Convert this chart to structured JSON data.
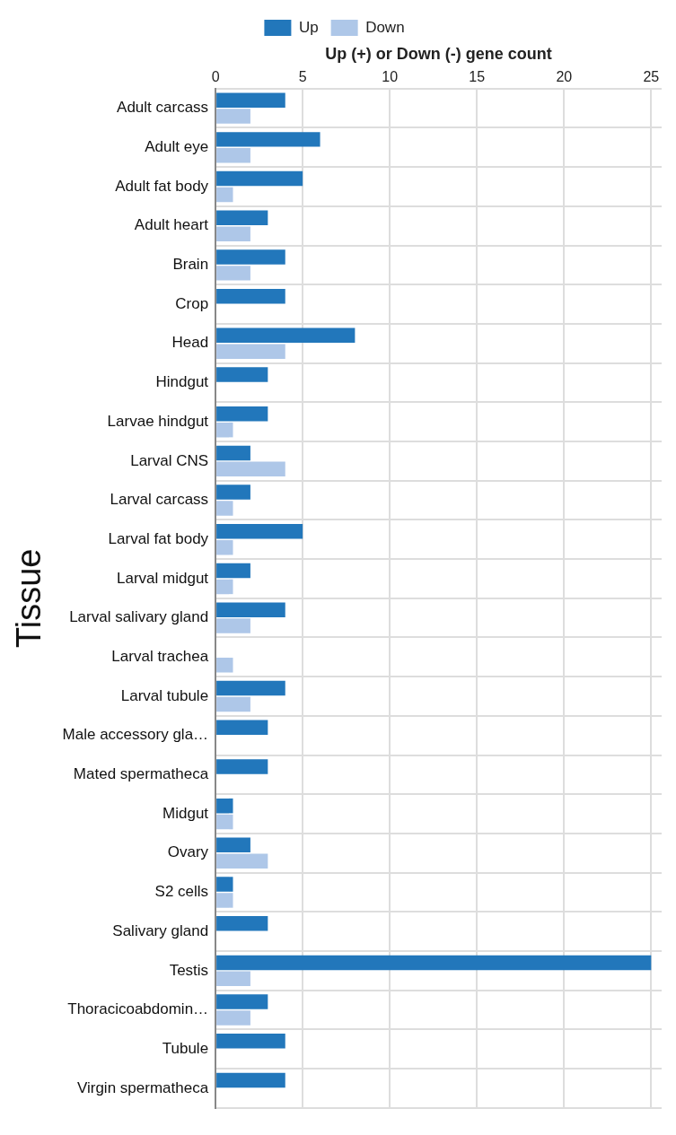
{
  "chart_data": {
    "type": "bar",
    "orientation": "horizontal",
    "xlabel": "Up (+) or Down (-) gene count",
    "ylabel": "Tissue",
    "categories": [
      "Adult carcass",
      "Adult eye",
      "Adult fat body",
      "Adult heart",
      "Brain",
      "Crop",
      "Head",
      "Hindgut",
      "Larvae hindgut",
      "Larval CNS",
      "Larval carcass",
      "Larval fat body",
      "Larval midgut",
      "Larval salivary gland",
      "Larval trachea",
      "Larval tubule",
      "Male accessory gla…",
      "Mated spermatheca",
      "Midgut",
      "Ovary",
      "S2 cells",
      "Salivary gland",
      "Testis",
      "Thoracicoabdomin…",
      "Tubule",
      "Virgin spermatheca"
    ],
    "series": [
      {
        "name": "Up",
        "color": "#2277bb",
        "values": [
          4,
          6,
          5,
          3,
          4,
          4,
          8,
          3,
          3,
          2,
          2,
          5,
          2,
          4,
          0,
          4,
          3,
          3,
          1,
          2,
          1,
          3,
          25,
          3,
          4,
          4
        ]
      },
      {
        "name": "Down",
        "color": "#aec7e8",
        "values": [
          2,
          2,
          1,
          2,
          2,
          0,
          4,
          0,
          1,
          4,
          1,
          1,
          1,
          2,
          1,
          2,
          0,
          0,
          1,
          3,
          1,
          0,
          2,
          2,
          0,
          0
        ]
      }
    ],
    "xlim": [
      0,
      25.6
    ],
    "xticks": [
      0,
      5,
      10,
      15,
      20,
      25
    ],
    "grid": true,
    "legend": "top"
  }
}
